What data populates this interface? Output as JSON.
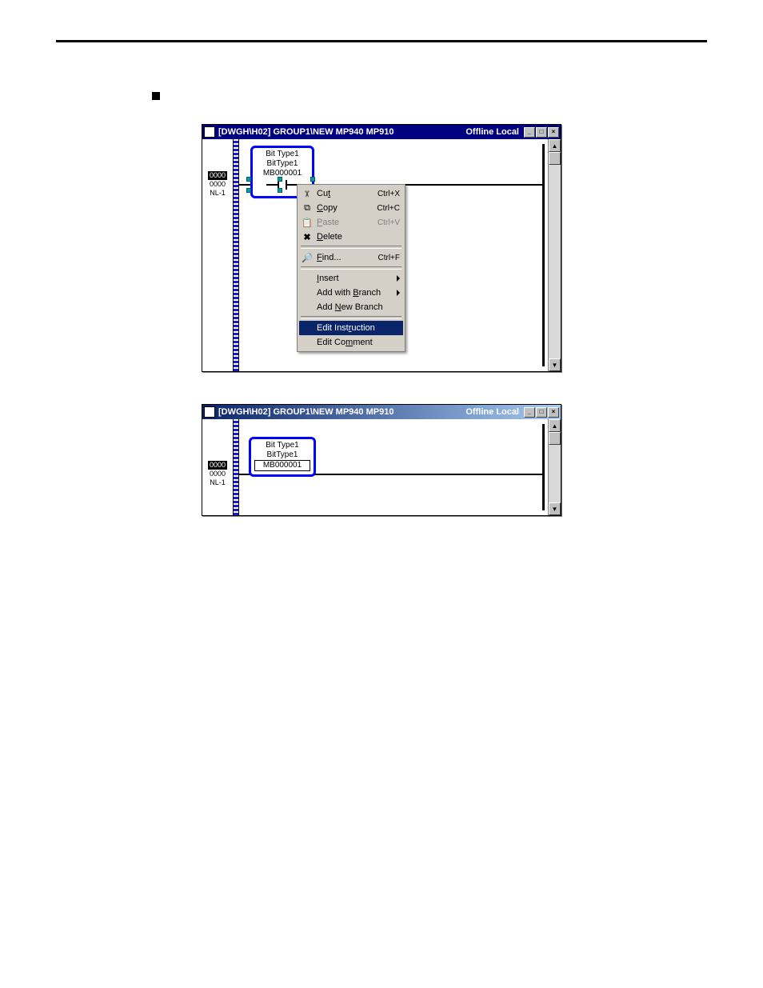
{
  "colors": {
    "titlebar_solid": "#000080",
    "titlebar_grad_from": "#0a246a",
    "titlebar_grad_to": "#a6caf0",
    "highlight_border": "#0000ff",
    "menu_highlight_bg": "#0a246a",
    "menu_bg": "#d4d0c8",
    "rail_color": "#1818d8"
  },
  "window1": {
    "title": "[DWGH\\H02]    GROUP1\\NEW  MP940  MP910",
    "status": "Offline  Local",
    "rung": {
      "tag": "0000",
      "line2": "0000",
      "line3": "NL-1"
    },
    "contact": {
      "l1": "Bit Type1",
      "l2": "BitType1",
      "l3": "MB000001"
    }
  },
  "ctxmenu": {
    "items": [
      {
        "icon": "cut-icon",
        "glyph": "✂",
        "label_pre": "Cu",
        "ul": "t",
        "label_post": "",
        "accel": "Ctrl+X",
        "disabled": false,
        "hassep": false
      },
      {
        "icon": "copy-icon",
        "glyph": "⧉",
        "label_pre": "",
        "ul": "C",
        "label_post": "opy",
        "accel": "Ctrl+C",
        "disabled": false,
        "hassep": false
      },
      {
        "icon": "paste-icon",
        "glyph": "📋",
        "label_pre": "",
        "ul": "P",
        "label_post": "aste",
        "accel": "Ctrl+V",
        "disabled": true,
        "hassep": false
      },
      {
        "icon": "delete-icon",
        "glyph": "✖",
        "label_pre": "",
        "ul": "D",
        "label_post": "elete",
        "accel": "",
        "disabled": false,
        "hassep": true
      },
      {
        "icon": "find-icon",
        "glyph": "🔎",
        "label_pre": "",
        "ul": "F",
        "label_post": "ind...",
        "accel": "Ctrl+F",
        "disabled": false,
        "hassep": true
      },
      {
        "icon": "",
        "glyph": "",
        "label_pre": "",
        "ul": "I",
        "label_post": "nsert",
        "accel": "",
        "disabled": false,
        "submenu": true
      },
      {
        "icon": "",
        "glyph": "",
        "label_pre": "Add with ",
        "ul": "B",
        "label_post": "ranch",
        "accel": "",
        "disabled": false,
        "submenu": true
      },
      {
        "icon": "",
        "glyph": "",
        "label_pre": "Add ",
        "ul": "N",
        "label_post": "ew Branch",
        "accel": "",
        "disabled": false,
        "hassep": true
      },
      {
        "icon": "",
        "glyph": "",
        "label_pre": "Edit Inst",
        "ul": "r",
        "label_post": "uction",
        "accel": "",
        "disabled": false,
        "highlight": true
      },
      {
        "icon": "",
        "glyph": "",
        "label_pre": "Edit Co",
        "ul": "m",
        "label_post": "ment",
        "accel": "",
        "disabled": false
      }
    ]
  },
  "window2": {
    "title": "[DWGH\\H02]    GROUP1\\NEW  MP940  MP910",
    "status": "Offline  Local",
    "rung": {
      "tag": "0000",
      "line2": "0000",
      "line3": "NL-1"
    },
    "contact": {
      "l1": "Bit Type1",
      "l2": "BitType1",
      "l3": "MB000001"
    }
  },
  "winbtns": {
    "min": "_",
    "max": "□",
    "close": "×"
  }
}
